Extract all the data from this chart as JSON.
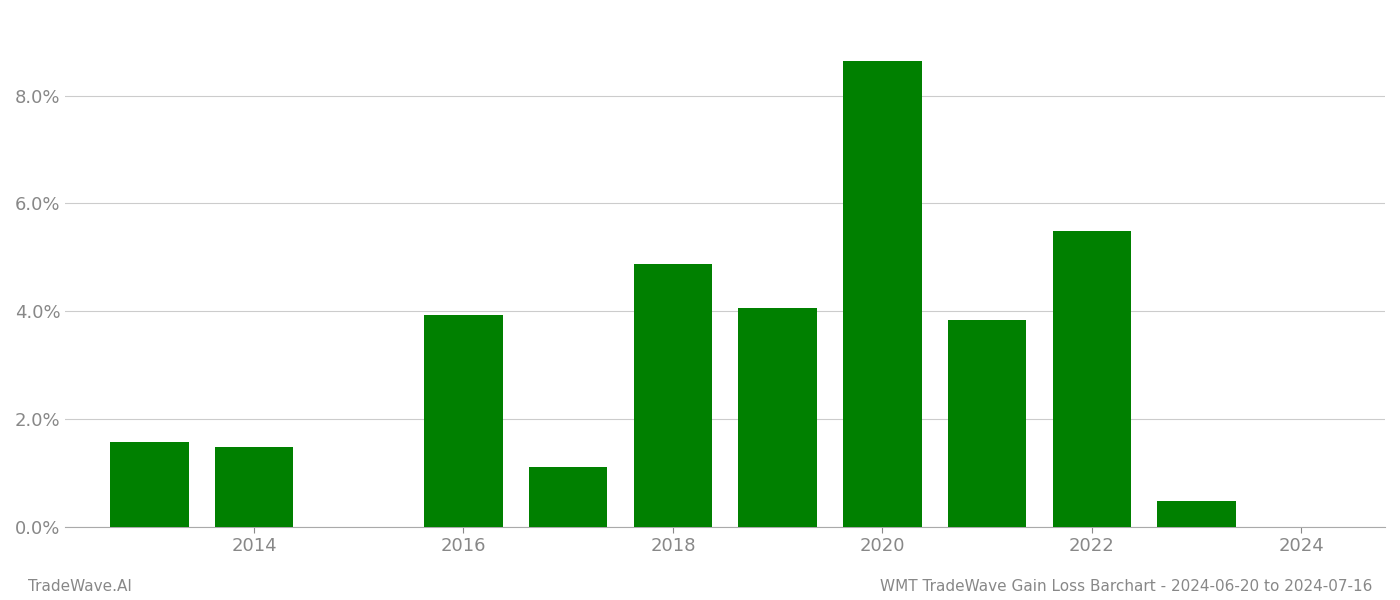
{
  "years": [
    2013,
    2014,
    2016,
    2017,
    2018,
    2019,
    2020,
    2021,
    2022,
    2023
  ],
  "values": [
    1.57,
    1.47,
    3.93,
    1.1,
    4.88,
    4.05,
    8.65,
    3.83,
    5.48,
    0.48
  ],
  "bar_color": "#008000",
  "background_color": "#ffffff",
  "grid_color": "#cccccc",
  "axis_color": "#aaaaaa",
  "tick_label_color": "#888888",
  "ylim": [
    0,
    9.5
  ],
  "yticks": [
    0.0,
    2.0,
    4.0,
    6.0,
    8.0
  ],
  "xlim_min": 2012.2,
  "xlim_max": 2024.8,
  "footer_left": "TradeWave.AI",
  "footer_right": "WMT TradeWave Gain Loss Barchart - 2024-06-20 to 2024-07-16",
  "footer_color": "#888888",
  "bar_width": 0.75,
  "xticks": [
    2014,
    2016,
    2018,
    2020,
    2022,
    2024
  ],
  "xtick_fontsize": 13,
  "ytick_fontsize": 13,
  "footer_fontsize": 11
}
